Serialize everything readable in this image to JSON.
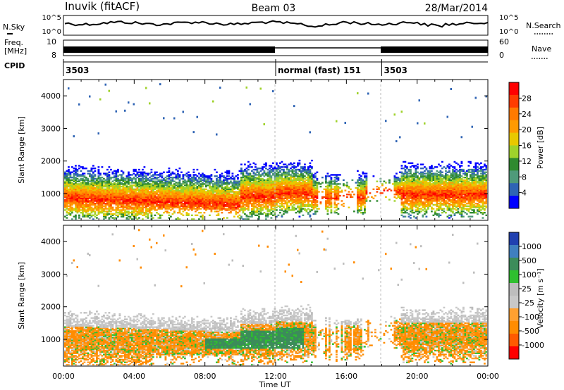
{
  "header": {
    "station": "Inuvik (fitACF)",
    "beam": "Beam 03",
    "date": "28/Mar/2014"
  },
  "panels": {
    "nsky_label": "N.Sky",
    "nsky_ticks": [
      "10^5",
      "10^0"
    ],
    "nsearch_label": "N.Search",
    "nsearch_ticks": [
      "10^5",
      "10^0"
    ],
    "freq_label": "Freq.",
    "freq_unit": "[MHz]",
    "freq_ticks": [
      "10",
      "8"
    ],
    "nave_label": "Nave",
    "nave_ticks": [
      "60",
      "0"
    ],
    "cpid_label": "CPID",
    "cpid_segments": [
      {
        "label": "3503",
        "start": 0,
        "end": 12
      },
      {
        "label": "normal (fast) 151",
        "start": 12,
        "end": 18
      },
      {
        "label": "3503",
        "start": 18,
        "end": 24
      }
    ]
  },
  "chart_data": [
    {
      "type": "heatmap",
      "title": "",
      "xlabel": "Time UT",
      "ylabel": "Slant Range [km]",
      "xlim": [
        0,
        24
      ],
      "ylim": [
        180,
        4500
      ],
      "x_ticks": [
        "00:00",
        "04:00",
        "08:00",
        "12:00",
        "16:00",
        "20:00",
        "00:00"
      ],
      "y_ticks": [
        1000,
        2000,
        3000,
        4000
      ],
      "colorbar_label": "Power [dB]",
      "colorbar_ticks": [
        "28",
        "24",
        "20",
        "16",
        "12",
        "8",
        "4"
      ],
      "colorbar_colors": [
        "#ff0000",
        "#ff3c00",
        "#ff7a00",
        "#ff9a00",
        "#e8c800",
        "#9fd22b",
        "#2f8a2f",
        "#4f9a7a",
        "#2f64b4",
        "#0000ff"
      ]
    },
    {
      "type": "heatmap",
      "title": "",
      "xlabel": "Time UT",
      "ylabel": "Slant Range [km]",
      "xlim": [
        0,
        24
      ],
      "ylim": [
        180,
        4500
      ],
      "x_ticks": [
        "00:00",
        "04:00",
        "08:00",
        "12:00",
        "16:00",
        "20:00",
        "00:00"
      ],
      "y_ticks": [
        1000,
        2000,
        3000,
        4000
      ],
      "colorbar_label": "Velocity [m s⁻¹]",
      "colorbar_ticks": [
        "1000",
        "500",
        "100",
        "25",
        "-25",
        "-100",
        "-500",
        "-1000"
      ],
      "colorbar_colors": [
        "#2040b0",
        "#3f7fbf",
        "#3c8c5a",
        "#2fbf2f",
        "#bdbdbd",
        "#c8c8c8",
        "#ffa030",
        "#ff8c00",
        "#ff5a00",
        "#ff0000"
      ]
    }
  ]
}
